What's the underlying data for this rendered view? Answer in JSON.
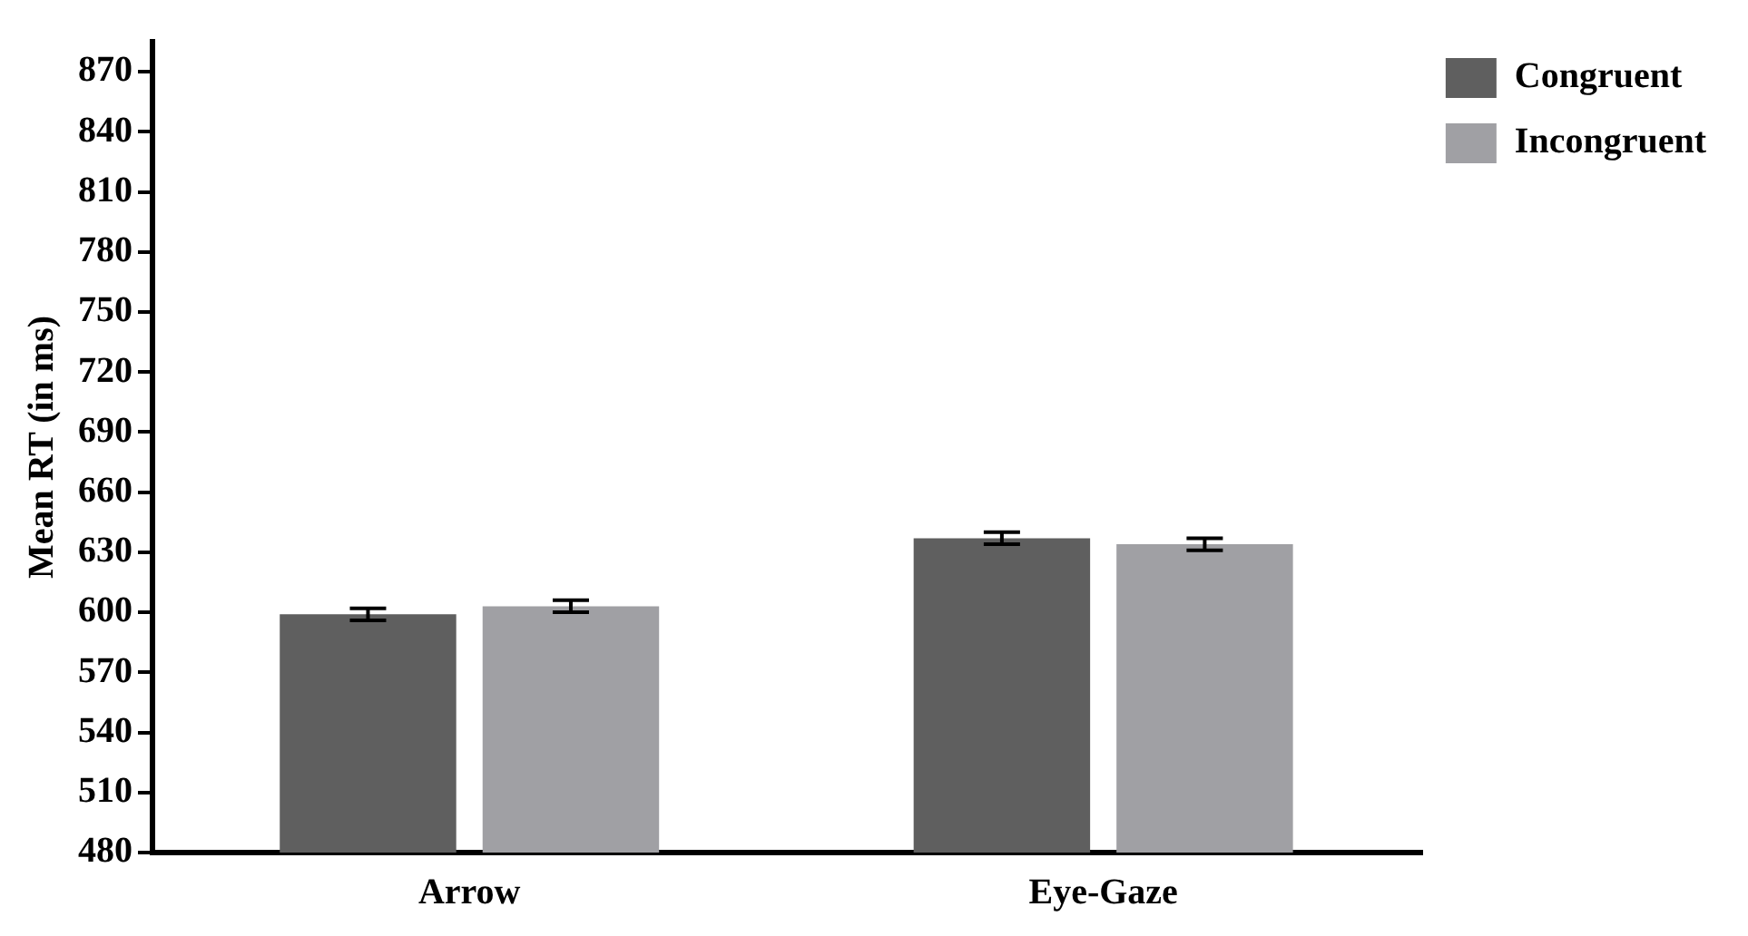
{
  "chart_data": {
    "type": "bar",
    "ylabel": "Mean RT (in ms)",
    "categories": [
      "Arrow",
      "Eye-Gaze"
    ],
    "series": [
      {
        "name": "Congruent",
        "color": "#5f5f5f",
        "values": [
          599,
          637
        ],
        "errors": [
          3,
          3
        ]
      },
      {
        "name": "Incongruent",
        "color": "#a0a0a4",
        "values": [
          603,
          634
        ],
        "errors": [
          3,
          3
        ]
      }
    ],
    "ylim": [
      480,
      885
    ],
    "yticks": [
      480,
      510,
      540,
      570,
      600,
      630,
      660,
      690,
      720,
      750,
      780,
      810,
      840,
      870
    ],
    "grid": false,
    "legend": "top right"
  }
}
